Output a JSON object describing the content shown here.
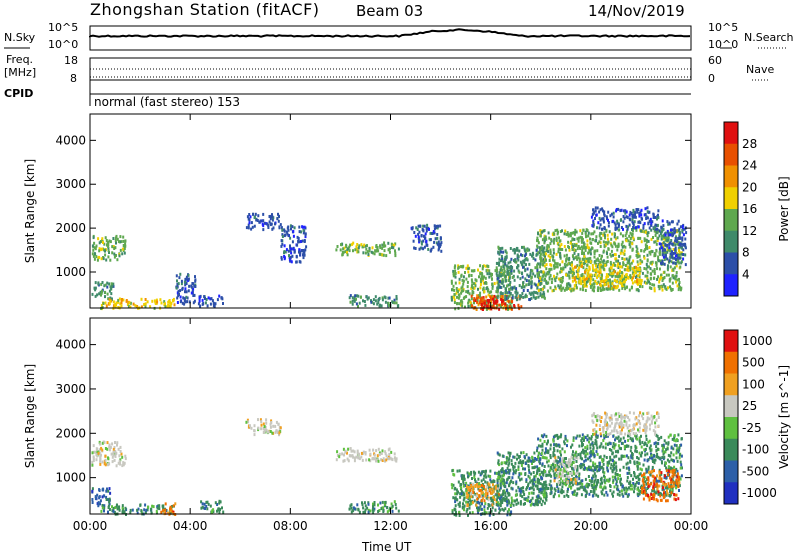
{
  "header": {
    "station": "Zhongshan Station (fitACF)",
    "beam": "Beam 03",
    "date": "14/Nov/2019"
  },
  "top_labels": {
    "nsky": "N.Sky",
    "nsky_top": "10^5",
    "nsky_bottom": "10^0",
    "nsearch": "N.Search",
    "nsearch_top": "10^5",
    "nsearch_bottom": "10^0",
    "freq_line1": "Freq.",
    "freq_line2": "[MHz]",
    "freq_top": "18",
    "freq_bottom": "8",
    "nave": "Nave",
    "nave_top": "60",
    "nave_bottom": "0",
    "cpid": "CPID",
    "mode": "normal (fast stereo) 153"
  },
  "chart_data": [
    {
      "type": "heatmap",
      "title": "",
      "xlabel": "",
      "ylabel": "Slant Range [km]",
      "x_ticks": [
        "00:00",
        "04:00",
        "08:00",
        "12:00",
        "16:00",
        "20:00",
        "00:00"
      ],
      "y_ticks": [
        "1000",
        "2000",
        "3000",
        "4000"
      ],
      "xlim": [
        0,
        24
      ],
      "ylim": [
        180,
        4600
      ],
      "colorbar": {
        "label": "Power [dB]",
        "ticks": [
          "4",
          "8",
          "12",
          "16",
          "20",
          "24",
          "28"
        ],
        "colors": [
          "#1f22ff",
          "#2c4fa8",
          "#3f8a6a",
          "#5fa84f",
          "#f0d000",
          "#f09000",
          "#e85000",
          "#e01010"
        ]
      },
      "regions": [
        {
          "t0": 0.05,
          "t1": 1.4,
          "r0": 1300,
          "r1": 1850,
          "level": 3
        },
        {
          "t0": 0.05,
          "t1": 0.9,
          "r0": 400,
          "r1": 800,
          "level": 2
        },
        {
          "t0": 0.4,
          "t1": 3.4,
          "r0": 200,
          "r1": 420,
          "level": 4
        },
        {
          "t0": 3.4,
          "t1": 4.2,
          "r0": 300,
          "r1": 1000,
          "level": 1
        },
        {
          "t0": 4.3,
          "t1": 5.3,
          "r0": 250,
          "r1": 500,
          "level": 1
        },
        {
          "t0": 6.2,
          "t1": 7.6,
          "r0": 2000,
          "r1": 2350,
          "level": 1
        },
        {
          "t0": 7.6,
          "t1": 8.6,
          "r0": 1250,
          "r1": 2100,
          "level": 1
        },
        {
          "t0": 9.8,
          "t1": 12.3,
          "r0": 1400,
          "r1": 1700,
          "level": 3
        },
        {
          "t0": 10.3,
          "t1": 12.3,
          "r0": 250,
          "r1": 500,
          "level": 2
        },
        {
          "t0": 12.8,
          "t1": 14.0,
          "r0": 1500,
          "r1": 2100,
          "level": 1
        },
        {
          "t0": 14.4,
          "t1": 16.8,
          "r0": 180,
          "r1": 1200,
          "level": 3
        },
        {
          "t0": 15.2,
          "t1": 17.2,
          "r0": 180,
          "r1": 500,
          "level": 6
        },
        {
          "t0": 15.6,
          "t1": 16.5,
          "r0": 180,
          "r1": 420,
          "level": 7
        },
        {
          "t0": 16.2,
          "t1": 18.2,
          "r0": 400,
          "r1": 1600,
          "level": 2
        },
        {
          "t0": 17.8,
          "t1": 23.6,
          "r0": 600,
          "r1": 2000,
          "level": 3
        },
        {
          "t0": 19.2,
          "t1": 22.0,
          "r0": 700,
          "r1": 1200,
          "level": 4
        },
        {
          "t0": 20.0,
          "t1": 22.7,
          "r0": 2000,
          "r1": 2500,
          "level": 1
        },
        {
          "t0": 22.7,
          "t1": 23.8,
          "r0": 1200,
          "r1": 2200,
          "level": 1
        }
      ]
    },
    {
      "type": "heatmap",
      "title": "",
      "xlabel": "Time UT",
      "ylabel": "Slant Range [km]",
      "x_ticks": [
        "00:00",
        "04:00",
        "08:00",
        "12:00",
        "16:00",
        "20:00",
        "00:00"
      ],
      "y_ticks": [
        "1000",
        "2000",
        "3000",
        "4000"
      ],
      "xlim": [
        0,
        24
      ],
      "ylim": [
        180,
        4600
      ],
      "colorbar": {
        "label": "Velocity [m s^-1]",
        "ticks": [
          "1000",
          "500",
          "100",
          "25",
          "-25",
          "-100",
          "-500",
          "-1000"
        ],
        "colors": [
          "#2030c0",
          "#2c5fa8",
          "#3a8a5a",
          "#5fc040",
          "#c8c8c0",
          "#f0a020",
          "#f07000",
          "#e01010"
        ]
      },
      "regions": [
        {
          "t0": 0.05,
          "t1": 1.4,
          "r0": 1300,
          "r1": 1850,
          "level": 4
        },
        {
          "t0": 0.05,
          "t1": 0.8,
          "r0": 400,
          "r1": 800,
          "level": 1
        },
        {
          "t0": 0.4,
          "t1": 3.4,
          "r0": 200,
          "r1": 420,
          "level": 2
        },
        {
          "t0": 2.8,
          "t1": 3.4,
          "r0": 200,
          "r1": 450,
          "level": 6
        },
        {
          "t0": 4.3,
          "t1": 5.3,
          "r0": 250,
          "r1": 500,
          "level": 2
        },
        {
          "t0": 6.2,
          "t1": 7.6,
          "r0": 2000,
          "r1": 2350,
          "level": 4
        },
        {
          "t0": 9.8,
          "t1": 12.3,
          "r0": 1400,
          "r1": 1700,
          "level": 4
        },
        {
          "t0": 10.3,
          "t1": 12.3,
          "r0": 250,
          "r1": 500,
          "level": 2
        },
        {
          "t0": 14.4,
          "t1": 16.8,
          "r0": 180,
          "r1": 1200,
          "level": 2
        },
        {
          "t0": 15.0,
          "t1": 16.3,
          "r0": 400,
          "r1": 900,
          "level": 5
        },
        {
          "t0": 16.2,
          "t1": 18.2,
          "r0": 400,
          "r1": 1600,
          "level": 2
        },
        {
          "t0": 17.8,
          "t1": 23.6,
          "r0": 600,
          "r1": 2000,
          "level": 2
        },
        {
          "t0": 18.5,
          "t1": 19.5,
          "r0": 900,
          "r1": 1500,
          "level": 4
        },
        {
          "t0": 20.0,
          "t1": 22.7,
          "r0": 2000,
          "r1": 2500,
          "level": 4
        },
        {
          "t0": 22.0,
          "t1": 23.5,
          "r0": 500,
          "r1": 1200,
          "level": 6
        }
      ]
    }
  ],
  "footer": {
    "xlabel": "Time UT"
  }
}
